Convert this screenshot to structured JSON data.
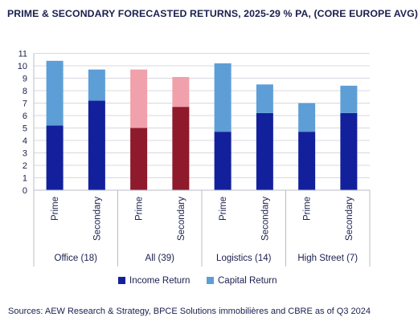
{
  "title": "PRIME & SECONDARY FORECASTED RETURNS, 2025-29 % PA, (CORE EUROPE AVG)",
  "source": "Sources: AEW Research & Strategy, BPCE Solutions immobilières and CBRE as of Q3 2024",
  "chart_data": {
    "type": "bar",
    "stacked": true,
    "groups": [
      "Office (18)",
      "All (39)",
      "Logistics (14)",
      "High Street (7)"
    ],
    "categories": [
      "Prime",
      "Secondary",
      "Prime",
      "Secondary",
      "Prime",
      "Secondary",
      "Prime",
      "Secondary"
    ],
    "series": [
      {
        "name": "Income Return",
        "values": [
          5.2,
          7.2,
          5.0,
          6.7,
          4.7,
          6.2,
          4.7,
          6.2
        ]
      },
      {
        "name": "Capital Return",
        "values": [
          5.2,
          2.5,
          4.7,
          2.4,
          5.5,
          2.3,
          2.3,
          2.2
        ]
      }
    ],
    "yticks": [
      "0",
      "1",
      "2",
      "3",
      "4",
      "5",
      "6",
      "7",
      "8",
      "9",
      "10",
      "11"
    ],
    "ylim": [
      0,
      11
    ],
    "grid": true,
    "legend": "bottom",
    "colors": {
      "income": "#13209c",
      "capital": "#5d9ed6",
      "income_highlight": "#8e1a2c",
      "capital_highlight": "#f0a1ab",
      "gridline": "#d8d8e0",
      "axis": "#1a1f4e"
    },
    "highlight_group": "All (39)"
  }
}
